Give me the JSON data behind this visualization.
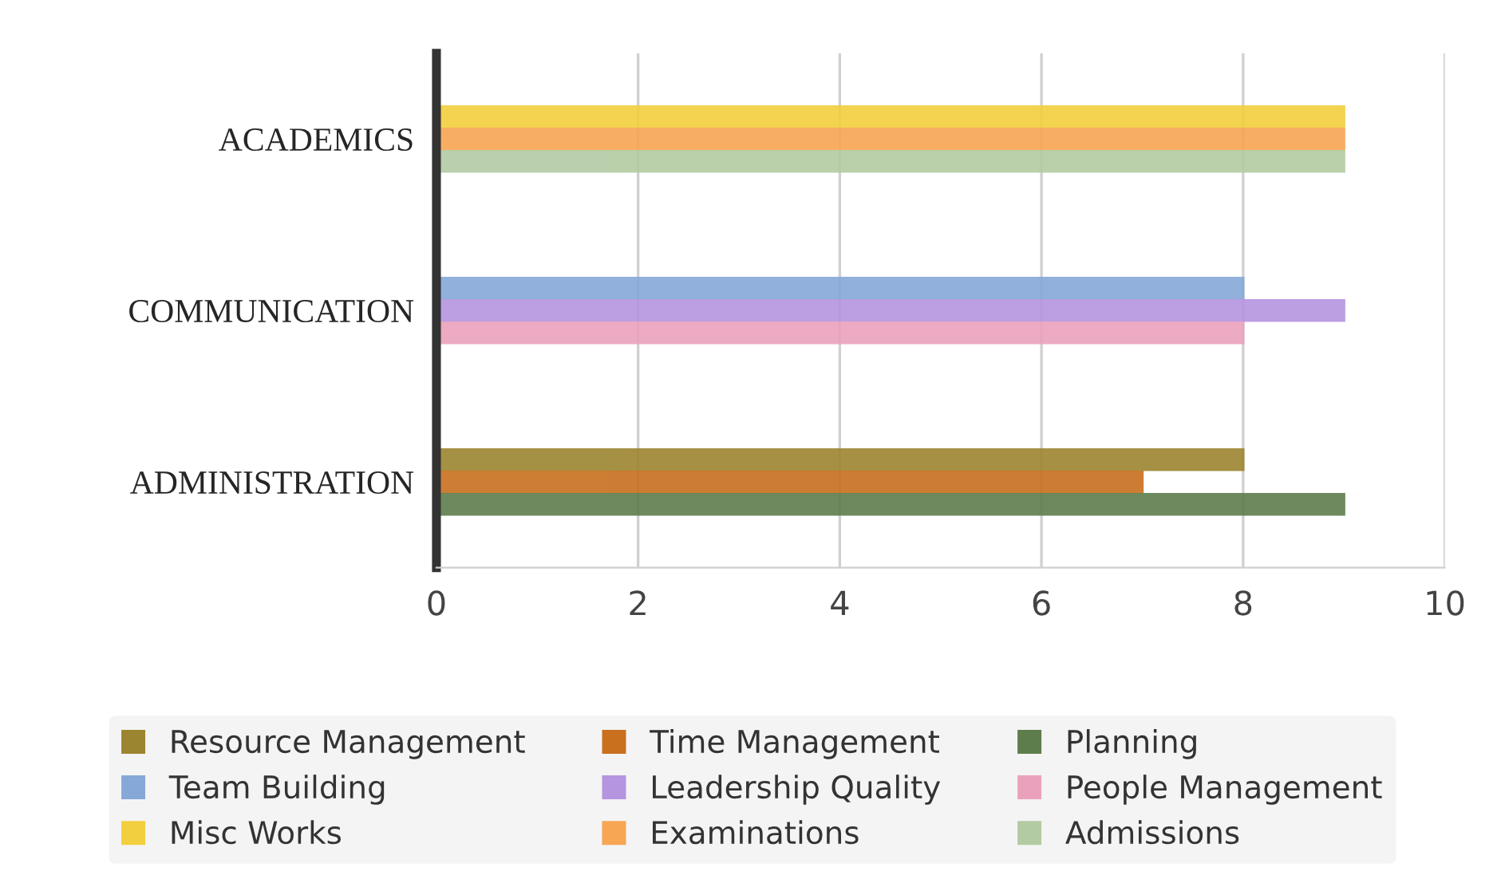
{
  "chart_data": {
    "type": "bar",
    "orientation": "horizontal",
    "categories": [
      "ACADEMICS",
      "COMMUNICATION",
      "ADMINISTRATION"
    ],
    "series": [
      {
        "name": "Resource Management",
        "color": "#9c8530",
        "values": [
          null,
          null,
          8
        ]
      },
      {
        "name": "Time Management",
        "color": "#c8701e",
        "values": [
          null,
          null,
          7
        ]
      },
      {
        "name": "Planning",
        "color": "#5e7d4c",
        "values": [
          null,
          null,
          9
        ]
      },
      {
        "name": "Team Building",
        "color": "#86a8d8",
        "values": [
          null,
          8,
          null
        ]
      },
      {
        "name": "Leadership Quality",
        "color": "#b594e0",
        "values": [
          null,
          9,
          null
        ]
      },
      {
        "name": "People Management",
        "color": "#eaa2bc",
        "values": [
          null,
          8,
          null
        ]
      },
      {
        "name": "Misc Works",
        "color": "#f2cf3e",
        "values": [
          9,
          null,
          null
        ]
      },
      {
        "name": "Examinations",
        "color": "#f7a653",
        "values": [
          9,
          null,
          null
        ]
      },
      {
        "name": "Admissions",
        "color": "#b3cba3",
        "values": [
          9,
          null,
          null
        ]
      }
    ],
    "xlim": [
      0,
      10
    ],
    "xticks": [
      0,
      2,
      4,
      6,
      8,
      10
    ],
    "grid": "x",
    "legend": "bottom"
  }
}
